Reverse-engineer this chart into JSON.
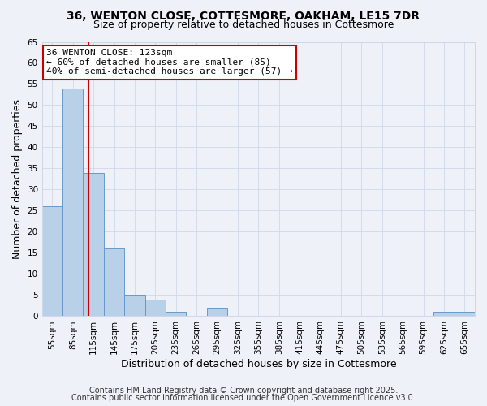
{
  "title_line1": "36, WENTON CLOSE, COTTESMORE, OAKHAM, LE15 7DR",
  "title_line2": "Size of property relative to detached houses in Cottesmore",
  "xlabel": "Distribution of detached houses by size in Cottesmore",
  "ylabel": "Number of detached properties",
  "bin_labels": [
    "55sqm",
    "85sqm",
    "115sqm",
    "145sqm",
    "175sqm",
    "205sqm",
    "235sqm",
    "265sqm",
    "295sqm",
    "325sqm",
    "355sqm",
    "385sqm",
    "415sqm",
    "445sqm",
    "475sqm",
    "505sqm",
    "535sqm",
    "565sqm",
    "595sqm",
    "625sqm",
    "655sqm"
  ],
  "bin_edges": [
    55,
    85,
    115,
    145,
    175,
    205,
    235,
    265,
    295,
    325,
    355,
    385,
    415,
    445,
    475,
    505,
    535,
    565,
    595,
    625,
    655,
    685
  ],
  "values": [
    26,
    54,
    34,
    16,
    5,
    4,
    1,
    0,
    2,
    0,
    0,
    0,
    0,
    0,
    0,
    0,
    0,
    0,
    0,
    1,
    1
  ],
  "bar_color": "#b8d0e8",
  "bar_edge_color": "#6699cc",
  "red_line_x": 123,
  "red_line_color": "#cc0000",
  "annotation_text": "36 WENTON CLOSE: 123sqm\n← 60% of detached houses are smaller (85)\n40% of semi-detached houses are larger (57) →",
  "annotation_box_color": "#ffffff",
  "annotation_box_edge_color": "#cc0000",
  "ylim": [
    0,
    65
  ],
  "yticks": [
    0,
    5,
    10,
    15,
    20,
    25,
    30,
    35,
    40,
    45,
    50,
    55,
    60,
    65
  ],
  "grid_color": "#d0d8e8",
  "background_color": "#eef2f8",
  "footer_line1": "Contains HM Land Registry data © Crown copyright and database right 2025.",
  "footer_line2": "Contains public sector information licensed under the Open Government Licence v3.0.",
  "title_fontsize": 10,
  "subtitle_fontsize": 9,
  "axis_label_fontsize": 9,
  "tick_fontsize": 7.5,
  "annotation_fontsize": 8,
  "footer_fontsize": 7
}
